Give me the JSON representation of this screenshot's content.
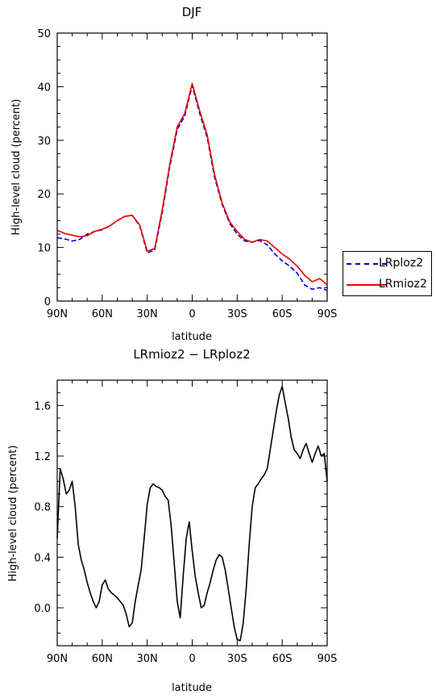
{
  "chart_data": [
    {
      "type": "line",
      "title": "DJF",
      "xlabel": "latitude",
      "ylabel": "High-level cloud (percent)",
      "xlim": [
        90,
        -90
      ],
      "ylim": [
        0,
        50
      ],
      "xticks": [
        "90N",
        "60N",
        "30N",
        "0",
        "30S",
        "60S",
        "90S"
      ],
      "yticks": [
        "0",
        "10",
        "20",
        "30",
        "40",
        "50"
      ],
      "legend": "right",
      "series": [
        {
          "name": "LRploz2",
          "color": "#0000cc",
          "style": "dashed",
          "x": [
            90,
            85,
            80,
            75,
            70,
            65,
            60,
            55,
            50,
            45,
            40,
            35,
            30,
            25,
            20,
            15,
            10,
            5,
            0,
            -5,
            -10,
            -15,
            -20,
            -25,
            -30,
            -35,
            -40,
            -45,
            -50,
            -55,
            -60,
            -65,
            -70,
            -75,
            -80,
            -85,
            -88,
            -90
          ],
          "y": [
            11.8,
            11.6,
            11.2,
            11.5,
            12.5,
            13.0,
            13.3,
            14.0,
            15.0,
            15.8,
            16.0,
            14.0,
            9.0,
            9.5,
            16.5,
            25.0,
            32.0,
            34.5,
            40.2,
            35.0,
            30.5,
            23.0,
            18.0,
            14.5,
            12.5,
            11.2,
            11.0,
            11.3,
            10.5,
            8.8,
            7.5,
            6.5,
            5.2,
            3.0,
            2.2,
            2.5,
            2.2,
            2.0
          ]
        },
        {
          "name": "LRmioz2",
          "color": "#ee0000",
          "style": "solid",
          "x": [
            90,
            85,
            80,
            75,
            70,
            65,
            60,
            55,
            50,
            45,
            40,
            35,
            30,
            25,
            20,
            15,
            10,
            5,
            0,
            -5,
            -10,
            -15,
            -20,
            -25,
            -30,
            -35,
            -40,
            -45,
            -50,
            -55,
            -60,
            -65,
            -70,
            -75,
            -80,
            -85,
            -88,
            -90
          ],
          "y": [
            13.2,
            12.6,
            12.3,
            12.0,
            12.2,
            13.0,
            13.4,
            14.0,
            15.0,
            15.8,
            16.0,
            14.2,
            9.3,
            9.8,
            17.0,
            25.5,
            32.5,
            35.0,
            40.6,
            35.5,
            31.0,
            23.5,
            18.3,
            14.8,
            13.0,
            11.5,
            11.0,
            11.5,
            11.2,
            10.0,
            8.8,
            7.8,
            6.5,
            4.8,
            3.6,
            4.2,
            3.5,
            3.0
          ]
        }
      ]
    },
    {
      "type": "line",
      "title": "LRmioz2 − LRploz2",
      "xlabel": "latitude",
      "ylabel": "High-level cloud (percent)",
      "xlim": [
        90,
        -90
      ],
      "ylim": [
        -0.3,
        1.8
      ],
      "xticks": [
        "90N",
        "60N",
        "30N",
        "0",
        "30S",
        "60S",
        "90S"
      ],
      "yticks": [
        "0.0",
        "0.4",
        "0.8",
        "1.2",
        "1.6"
      ],
      "series": [
        {
          "color": "#000000",
          "style": "solid",
          "x": [
            90,
            88,
            86,
            84,
            82,
            80,
            78,
            76,
            74,
            72,
            70,
            68,
            66,
            64,
            62,
            60,
            58,
            56,
            54,
            52,
            50,
            48,
            46,
            44,
            42,
            40,
            38,
            36,
            34,
            32,
            30,
            28,
            26,
            24,
            22,
            20,
            18,
            16,
            14,
            12,
            10,
            8,
            6,
            4,
            2,
            0,
            -2,
            -4,
            -6,
            -8,
            -10,
            -12,
            -14,
            -16,
            -18,
            -20,
            -22,
            -24,
            -26,
            -28,
            -30,
            -32,
            -34,
            -36,
            -38,
            -40,
            -42,
            -44,
            -46,
            -48,
            -50,
            -52,
            -54,
            -56,
            -58,
            -60,
            -62,
            -64,
            -66,
            -68,
            -70,
            -72,
            -74,
            -76,
            -78,
            -80,
            -82,
            -84,
            -86,
            -88,
            -90
          ],
          "y": [
            0.55,
            1.1,
            1.02,
            0.9,
            0.93,
            1.0,
            0.8,
            0.5,
            0.38,
            0.3,
            0.2,
            0.12,
            0.05,
            0.0,
            0.05,
            0.18,
            0.22,
            0.15,
            0.12,
            0.1,
            0.08,
            0.05,
            0.02,
            -0.05,
            -0.15,
            -0.12,
            0.05,
            0.18,
            0.3,
            0.55,
            0.82,
            0.95,
            0.98,
            0.96,
            0.95,
            0.93,
            0.88,
            0.85,
            0.65,
            0.35,
            0.05,
            -0.08,
            0.25,
            0.55,
            0.68,
            0.45,
            0.25,
            0.12,
            0.0,
            0.02,
            0.12,
            0.2,
            0.3,
            0.38,
            0.42,
            0.4,
            0.3,
            0.15,
            0.0,
            -0.15,
            -0.25,
            -0.26,
            -0.12,
            0.15,
            0.5,
            0.8,
            0.95,
            0.98,
            1.02,
            1.05,
            1.1,
            1.25,
            1.4,
            1.55,
            1.68,
            1.75,
            1.62,
            1.5,
            1.35,
            1.25,
            1.22,
            1.18,
            1.25,
            1.3,
            1.22,
            1.15,
            1.22,
            1.28,
            1.2,
            1.22,
            1.0
          ]
        }
      ]
    }
  ]
}
